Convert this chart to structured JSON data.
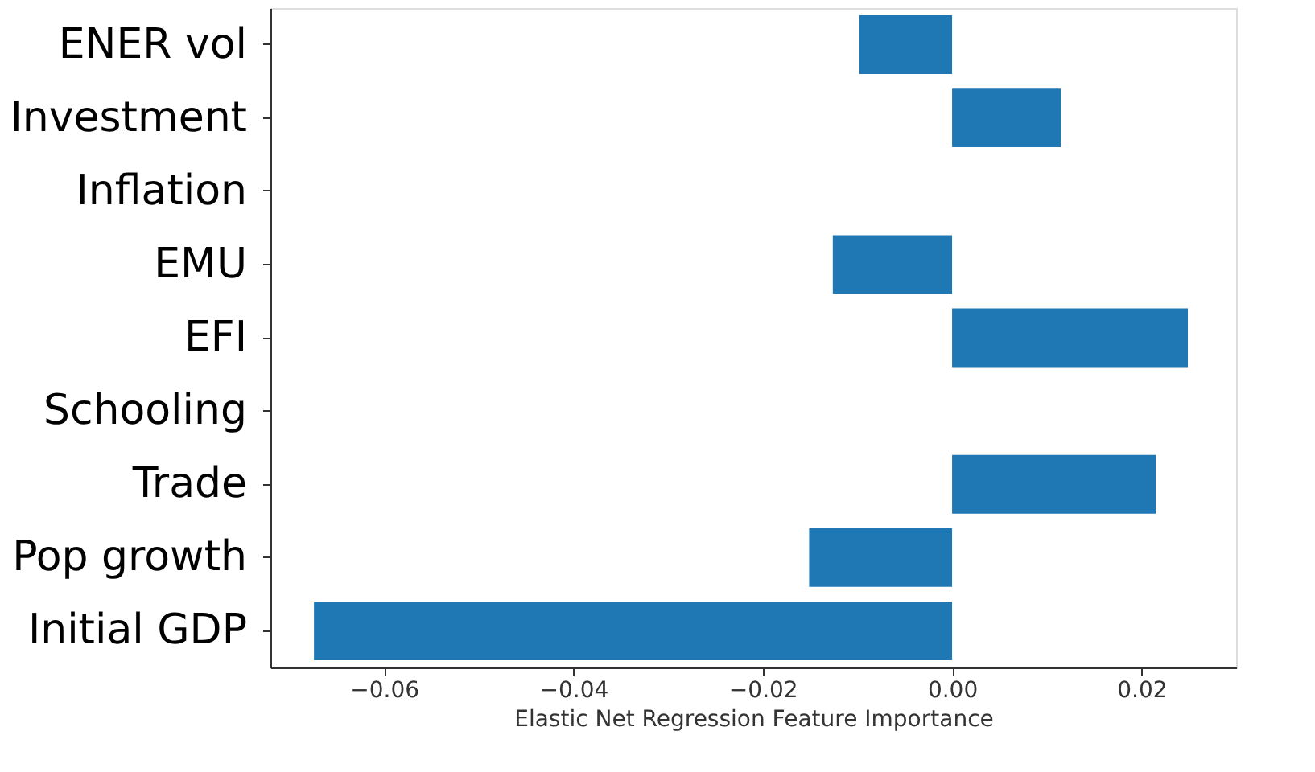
{
  "chart_data": {
    "type": "bar",
    "orientation": "horizontal",
    "xlabel": "Elastic Net Regression Feature Importance",
    "categories": [
      "ENER vol",
      "Investment",
      "Inflation",
      "EMU",
      "EFI",
      "Schooling",
      "Trade",
      "Pop growth",
      "Initial GDP"
    ],
    "values": [
      -0.0098,
      0.0115,
      0,
      -0.0126,
      0.0249,
      0,
      0.0215,
      -0.0151,
      -0.0674
    ],
    "color": "#1f77b4",
    "xlim": [
      -0.072,
      0.03
    ],
    "xticks": [
      {
        "value": -0.06,
        "label": "−0.06"
      },
      {
        "value": -0.04,
        "label": "−0.04"
      },
      {
        "value": -0.02,
        "label": "−0.02"
      },
      {
        "value": 0,
        "label": "0.00"
      },
      {
        "value": 0.02,
        "label": "0.02"
      }
    ],
    "grid": false
  }
}
